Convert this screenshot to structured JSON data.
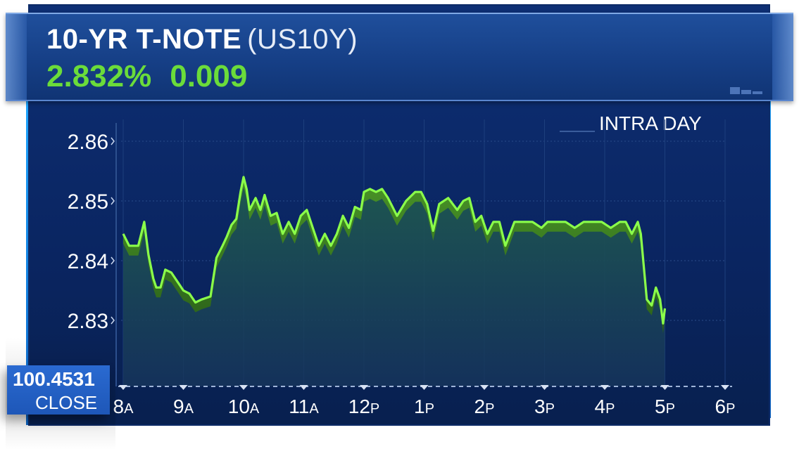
{
  "header": {
    "title": "10-YR T-NOTE",
    "symbol": "(US10Y)",
    "yield": "2.832%",
    "change": "0.009"
  },
  "colors": {
    "panel": "#0a2561",
    "header": "#163f86",
    "accent_green": "#6bdc3a",
    "line_green": "#8bff4a",
    "area_fill": "#1d4a4c",
    "close_box": "#2a6ad1"
  },
  "close_box": {
    "value": "100.4531",
    "label": "CLOSE"
  },
  "chart_data": {
    "type": "line",
    "title": "INTRA DAY",
    "ylim": [
      2.822,
      2.863
    ],
    "yticks": [
      2.83,
      2.84,
      2.85,
      2.86
    ],
    "ytick_labels": [
      "2.83",
      "2.84",
      "2.85",
      "2.86"
    ],
    "xlim": [
      8,
      18
    ],
    "xticks": [
      8,
      9,
      10,
      11,
      12,
      13,
      14,
      15,
      16,
      17,
      18
    ],
    "xtick_labels": [
      {
        "num": "8",
        "suffix": "A"
      },
      {
        "num": "9",
        "suffix": "A"
      },
      {
        "num": "10",
        "suffix": "A"
      },
      {
        "num": "11",
        "suffix": "A"
      },
      {
        "num": "12",
        "suffix": "P"
      },
      {
        "num": "1",
        "suffix": "P"
      },
      {
        "num": "2",
        "suffix": "P"
      },
      {
        "num": "3",
        "suffix": "P"
      },
      {
        "num": "4",
        "suffix": "P"
      },
      {
        "num": "5",
        "suffix": "P"
      },
      {
        "num": "6",
        "suffix": "P"
      }
    ],
    "grid": true,
    "series": [
      {
        "x": [
          8.0,
          8.1,
          8.25,
          8.35,
          8.42,
          8.5,
          8.55,
          8.62,
          8.7,
          8.8,
          8.9,
          9.0,
          9.1,
          9.2,
          9.3,
          9.45,
          9.55,
          9.65,
          9.72,
          9.8,
          9.88,
          9.95,
          10.0,
          10.05,
          10.1,
          10.2,
          10.28,
          10.35,
          10.45,
          10.55,
          10.65,
          10.75,
          10.85,
          10.95,
          11.05,
          11.15,
          11.25,
          11.35,
          11.45,
          11.55,
          11.65,
          11.75,
          11.85,
          11.95,
          12.0,
          12.1,
          12.2,
          12.3,
          12.4,
          12.55,
          12.7,
          12.85,
          12.95,
          13.05,
          13.15,
          13.25,
          13.4,
          13.55,
          13.65,
          13.75,
          13.85,
          13.95,
          14.05,
          14.15,
          14.25,
          14.35,
          14.5,
          14.65,
          14.8,
          14.95,
          15.05,
          15.2,
          15.35,
          15.5,
          15.65,
          15.8,
          15.95,
          16.1,
          16.25,
          16.35,
          16.45,
          16.55,
          16.6,
          16.7,
          16.78,
          16.85,
          16.92,
          16.97,
          17.0
        ],
        "y": [
          2.8445,
          2.8425,
          2.8425,
          2.8465,
          2.841,
          2.837,
          2.8355,
          2.8355,
          2.8385,
          2.838,
          2.8365,
          2.835,
          2.8345,
          2.833,
          2.8335,
          2.834,
          2.8405,
          2.8425,
          2.844,
          2.846,
          2.847,
          2.8515,
          2.854,
          2.852,
          2.8485,
          2.8505,
          2.8485,
          2.851,
          2.8475,
          2.848,
          2.8445,
          2.8465,
          2.8445,
          2.8475,
          2.8485,
          2.8455,
          2.8425,
          2.8445,
          2.8425,
          2.8445,
          2.8475,
          2.8455,
          2.849,
          2.8485,
          2.8515,
          2.852,
          2.8515,
          2.852,
          2.8505,
          2.8475,
          2.85,
          2.8515,
          2.8515,
          2.8495,
          2.845,
          2.8495,
          2.8505,
          2.8485,
          2.85,
          2.8505,
          2.8465,
          2.8475,
          2.8445,
          2.8465,
          2.8465,
          2.8425,
          2.8465,
          2.8465,
          2.8465,
          2.8455,
          2.8465,
          2.8465,
          2.8465,
          2.8455,
          2.8465,
          2.8465,
          2.8465,
          2.8455,
          2.8465,
          2.8465,
          2.8445,
          2.8465,
          2.8445,
          2.8335,
          2.8325,
          2.8355,
          2.8335,
          2.8295,
          2.832
        ]
      }
    ]
  }
}
